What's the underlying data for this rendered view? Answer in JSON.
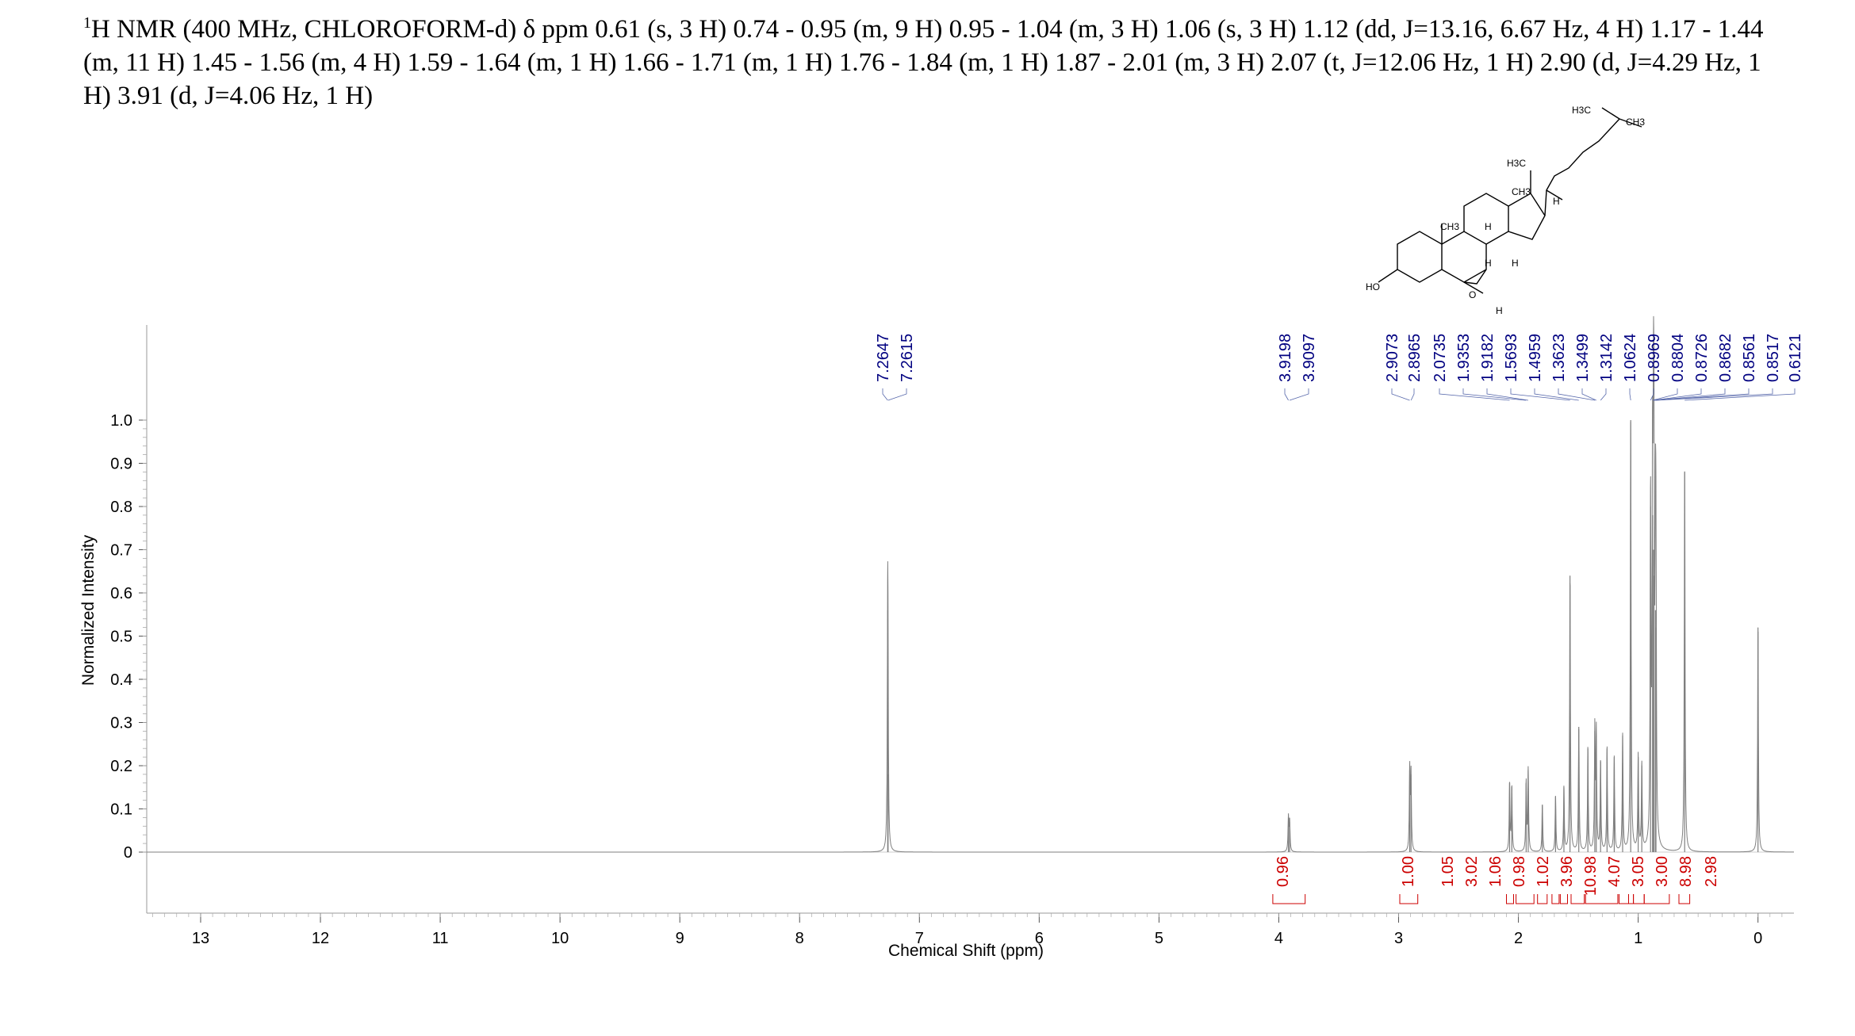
{
  "header": {
    "nucleus_mass": "1",
    "text": "H NMR (400 MHz, CHLOROFORM-d) δ ppm 0.61 (s, 3 H) 0.74 - 0.95 (m, 9 H) 0.95 - 1.04 (m, 3 H) 1.06 (s, 3 H) 1.12 (dd, J=13.16, 6.67 Hz, 4 H) 1.17 - 1.44 (m, 11 H) 1.45 - 1.56 (m, 4 H) 1.59 - 1.64 (m, 1 H) 1.66 - 1.71 (m, 1 H) 1.76 - 1.84 (m, 1 H) 1.87 - 2.01 (m, 3 H) 2.07 (t, J=12.06 Hz, 1 H) 2.90 (d, J=4.29 Hz, 1 H) 3.91 (d, J=4.06 Hz, 1 H)"
  },
  "structure": {
    "labels": [
      "H3C",
      "CH3",
      "H3C",
      "CH3",
      "H",
      "CH3",
      "H",
      "H",
      "H",
      "HO",
      "O",
      "H"
    ]
  },
  "chart_data": {
    "type": "line",
    "xlabel": "Chemical Shift (ppm)",
    "ylabel": "Normalized Intensity",
    "xlim": [
      13.45,
      -0.3
    ],
    "ylim": [
      -0.15,
      1.22
    ],
    "x_ticks": [
      13,
      12,
      11,
      10,
      9,
      8,
      7,
      6,
      5,
      4,
      3,
      2,
      1,
      0
    ],
    "y_ticks": [
      {
        "value": 0,
        "label": "0"
      },
      {
        "value": 0.1,
        "label": "0.1"
      },
      {
        "value": 0.2,
        "label": "0.2"
      },
      {
        "value": 0.3,
        "label": "0.3"
      },
      {
        "value": 0.4,
        "label": "0.4"
      },
      {
        "value": 0.5,
        "label": "0.5"
      },
      {
        "value": 0.6,
        "label": "0.6"
      },
      {
        "value": 0.7,
        "label": "0.7"
      },
      {
        "value": 0.8,
        "label": "0.8"
      },
      {
        "value": 0.9,
        "label": "0.9"
      },
      {
        "value": 1.0,
        "label": "1.0"
      }
    ],
    "peaks": [
      {
        "ppm": 7.2647,
        "height": 0.56
      },
      {
        "ppm": 7.2615,
        "height": 0.18
      },
      {
        "ppm": 3.9198,
        "height": 0.08
      },
      {
        "ppm": 3.9097,
        "height": 0.07
      },
      {
        "ppm": 2.9073,
        "height": 0.19
      },
      {
        "ppm": 2.8965,
        "height": 0.18
      },
      {
        "ppm": 2.0735,
        "height": 0.16
      },
      {
        "ppm": 2.055,
        "height": 0.15
      },
      {
        "ppm": 1.9353,
        "height": 0.16
      },
      {
        "ppm": 1.9182,
        "height": 0.19
      },
      {
        "ppm": 1.8,
        "height": 0.11
      },
      {
        "ppm": 1.69,
        "height": 0.13
      },
      {
        "ppm": 1.62,
        "height": 0.15
      },
      {
        "ppm": 1.5693,
        "height": 0.64
      },
      {
        "ppm": 1.4959,
        "height": 0.29
      },
      {
        "ppm": 1.42,
        "height": 0.24
      },
      {
        "ppm": 1.3623,
        "height": 0.28
      },
      {
        "ppm": 1.3499,
        "height": 0.27
      },
      {
        "ppm": 1.3142,
        "height": 0.21
      },
      {
        "ppm": 1.26,
        "height": 0.24
      },
      {
        "ppm": 1.2,
        "height": 0.22
      },
      {
        "ppm": 1.13,
        "height": 0.27
      },
      {
        "ppm": 1.0624,
        "height": 1.0
      },
      {
        "ppm": 1.0,
        "height": 0.22
      },
      {
        "ppm": 0.97,
        "height": 0.2
      },
      {
        "ppm": 0.8969,
        "height": 0.8
      },
      {
        "ppm": 0.8804,
        "height": 0.78
      },
      {
        "ppm": 0.8726,
        "height": 0.7
      },
      {
        "ppm": 0.8682,
        "height": 0.64
      },
      {
        "ppm": 0.8561,
        "height": 0.56
      },
      {
        "ppm": 0.8517,
        "height": 0.52
      },
      {
        "ppm": 0.6121,
        "height": 0.88
      },
      {
        "ppm": 0.0,
        "height": 0.52
      }
    ],
    "peak_labels": [
      "7.2647",
      "7.2615",
      "3.9198",
      "3.9097",
      "2.9073",
      "2.8965",
      "2.0735",
      "1.9353",
      "1.9182",
      "1.5693",
      "1.4959",
      "1.3623",
      "1.3499",
      "1.3142",
      "1.0624",
      "0.8969",
      "0.8804",
      "0.8726",
      "0.8682",
      "0.8561",
      "0.8517",
      "0.6121"
    ],
    "integrals": [
      {
        "value": "0.96",
        "from": 4.05,
        "to": 3.78
      },
      {
        "value": "1.00",
        "from": 2.99,
        "to": 2.84
      },
      {
        "value": "1.05",
        "from": 2.1,
        "to": 2.04
      },
      {
        "value": "3.02",
        "from": 2.02,
        "to": 1.87
      },
      {
        "value": "1.06",
        "from": 1.84,
        "to": 1.76
      },
      {
        "value": "0.98",
        "from": 1.72,
        "to": 1.66
      },
      {
        "value": "1.02",
        "from": 1.65,
        "to": 1.59
      },
      {
        "value": "3.96",
        "from": 1.56,
        "to": 1.45
      },
      {
        "value": "10.98",
        "from": 1.44,
        "to": 1.17
      },
      {
        "value": "4.07",
        "from": 1.16,
        "to": 1.08
      },
      {
        "value": "3.05",
        "from": 1.08,
        "to": 1.04
      },
      {
        "value": "3.00",
        "from": 1.04,
        "to": 0.95
      },
      {
        "value": "8.98",
        "from": 0.95,
        "to": 0.74
      },
      {
        "value": "2.98",
        "from": 0.66,
        "to": 0.57
      }
    ],
    "colors": {
      "spectrum": "#7f7f7f",
      "peak_labels": "#000080",
      "integrals": "#cc0000",
      "axis": "#000000"
    }
  }
}
